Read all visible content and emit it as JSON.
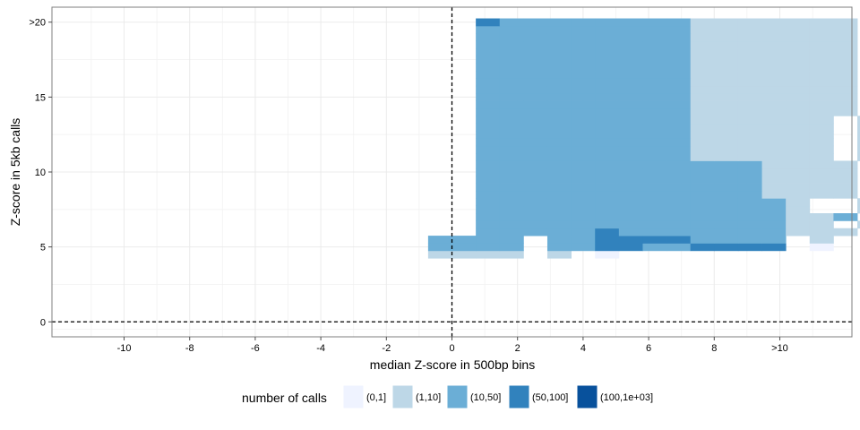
{
  "chart_data": {
    "type": "heatmap",
    "xlabel": "median Z-score in 500bp bins",
    "ylabel": "Z-score in 5kb calls",
    "xlim": [
      -12.2,
      12.2
    ],
    "ylim": [
      -1,
      21
    ],
    "x_ticks": [
      {
        "value": -10,
        "label": "-10"
      },
      {
        "value": -8,
        "label": "-8"
      },
      {
        "value": -6,
        "label": "-6"
      },
      {
        "value": -4,
        "label": "-4"
      },
      {
        "value": -2,
        "label": "-2"
      },
      {
        "value": 0,
        "label": "0"
      },
      {
        "value": 2,
        "label": "2"
      },
      {
        "value": 4,
        "label": "4"
      },
      {
        "value": 6,
        "label": "6"
      },
      {
        "value": 8,
        "label": "8"
      },
      {
        "value": 10,
        "label": ">10"
      }
    ],
    "y_ticks": [
      {
        "value": 0,
        "label": "0"
      },
      {
        "value": 5,
        "label": "5"
      },
      {
        "value": 10,
        "label": "10"
      },
      {
        "value": 15,
        "label": "15"
      },
      {
        "value": 20,
        "label": "20",
        "display": ">20"
      }
    ],
    "grid": true,
    "reference_lines": {
      "x": 0,
      "y": 0,
      "style": "dashed"
    },
    "bin_width_x": 0.7273,
    "bin_height_y": 0.5,
    "x_bin_start": -0.727,
    "y_bin_start": 4.25,
    "colors": [
      "#eff3ff",
      "#bdd7e7",
      "#6baed6",
      "#3182bd",
      "#08519c"
    ],
    "legend": {
      "title": "number of calls",
      "position": "bottom",
      "entries": [
        "(0,1]",
        "(1,10]",
        "(10,50]",
        "(50,100]",
        "(100,1e+03]"
      ]
    },
    "rows": [
      [
        0,
        "1111 1 0                       "
      ],
      [
        1,
        "2222 2233223333 0     1        "
      ],
      [
        2,
        "2222 2233332222 1              "
      ],
      [
        3,
        "  2222232222222111 0   0       "
      ],
      [
        4,
        "  222222222222211 10   0      1"
      ],
      [
        5,
        "  2222222222222112 1   2       "
      ],
      [
        6,
        "  22222222222221  1     1       "
      ],
      [
        7,
        "  22222222222221  1        1   "
      ],
      [
        8,
        "  2222222222221111  111     111"
      ],
      [
        9,
        "  2222222222221111  1 1 1   111"
      ],
      [
        10,
        "  2222222222221111  1 1     111"
      ],
      [
        11,
        "  2222222222221111  11      1 1"
      ],
      [
        12,
        "  2222222222221111  111    1111"
      ],
      [
        13,
        "  222222222111111 1  1 11   111"
      ],
      [
        14,
        "  222222222111111 1 11 111  111"
      ],
      [
        15,
        "  222222222111111 1 11 1111 111"
      ],
      [
        16,
        "  222222222111111 1 11 1111 111"
      ],
      [
        17,
        "  222222222111111 1 11 11 1 111"
      ],
      [
        18,
        "  222222222111111 1 11 11 1 111"
      ],
      [
        19,
        "  2222222221111111 1111 11 1 11"
      ],
      [
        20,
        "  2222222221111111 1111 11 1 11"
      ],
      [
        21,
        "  2222222221111111 1111 11 1 11"
      ],
      [
        22,
        "  2222222221111111 1111 11 1 11"
      ],
      [
        23,
        "  2222222221111111 1111 11 1 11"
      ],
      [
        24,
        "  2222222221111111 1111 11 1 11"
      ],
      [
        25,
        "  2222222221111111 1111 11 1 11"
      ],
      [
        26,
        "  2222222221111111 1111 11 1 11"
      ],
      [
        27,
        "  2222222221111111 1111 11 1 11"
      ],
      [
        28,
        "  2222222221111111 1111 11 1 11"
      ],
      [
        29,
        "  2222222221111111 1111 11 1 11"
      ],
      [
        30,
        "  2222222221111111 1111 11 1 11"
      ],
      [
        31,
        "  3222222221111111 2222 22 2 24"
      ]
    ]
  }
}
